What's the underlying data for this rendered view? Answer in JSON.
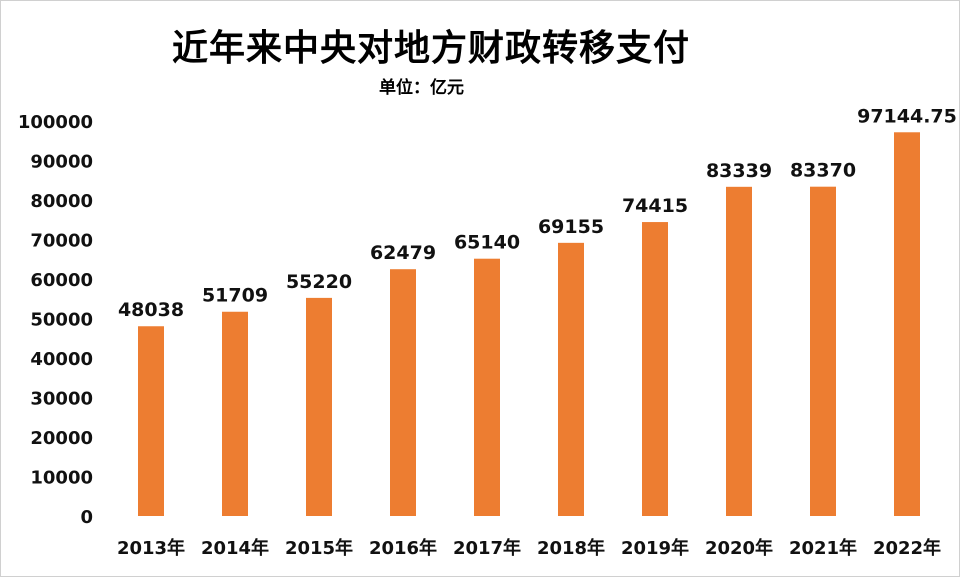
{
  "chart_data": {
    "type": "bar",
    "title": "近年来中央对地方财政转移支付",
    "subtitle": "单位：亿元",
    "categories": [
      "2013年",
      "2014年",
      "2015年",
      "2016年",
      "2017年",
      "2018年",
      "2019年",
      "2020年",
      "2021年",
      "2022年"
    ],
    "values": [
      48038,
      51709,
      55220,
      62479,
      65140,
      69155,
      74415,
      83339,
      83370,
      97144.75
    ],
    "value_labels": [
      "48038",
      "51709",
      "55220",
      "62479",
      "65140",
      "69155",
      "74415",
      "83339",
      "83370",
      "97144.75"
    ],
    "ylim": [
      0,
      100000
    ],
    "yticks": [
      0,
      10000,
      20000,
      30000,
      40000,
      50000,
      60000,
      70000,
      80000,
      90000,
      100000
    ],
    "ytick_labels": [
      "0",
      "10000",
      "20000",
      "30000",
      "40000",
      "50000",
      "60000",
      "70000",
      "80000",
      "90000",
      "100000"
    ],
    "xlabel": "",
    "ylabel": "",
    "grid": false,
    "legend": "none",
    "bar_color": "#ED7D31"
  }
}
